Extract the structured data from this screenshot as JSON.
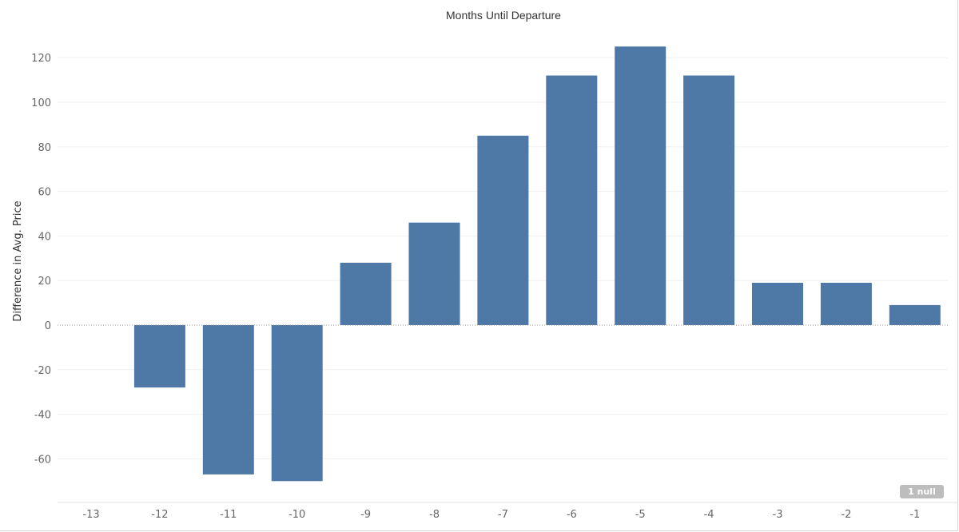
{
  "chart_data": {
    "type": "bar",
    "title": "Months Until Departure",
    "xlabel": "",
    "ylabel": "Difference in Avg. Price",
    "categories": [
      "-13",
      "-12",
      "-11",
      "-10",
      "-9",
      "-8",
      "-7",
      "-6",
      "-5",
      "-4",
      "-3",
      "-2",
      "-1"
    ],
    "values": [
      null,
      -28,
      -67,
      -70,
      28,
      46,
      85,
      112,
      125,
      112,
      19,
      19,
      9
    ],
    "ylim": [
      -80,
      130
    ],
    "yticks": [
      -60,
      -40,
      -20,
      0,
      20,
      40,
      60,
      80,
      100,
      120
    ],
    "grid": true,
    "bar_color": "#4e79a7",
    "null_indicator": "1 null"
  }
}
